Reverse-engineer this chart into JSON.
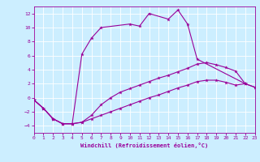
{
  "xlabel": "Windchill (Refroidissement éolien,°C)",
  "background_color": "#cceeff",
  "grid_color": "#ffffff",
  "line_color": "#990099",
  "xlim": [
    0,
    23
  ],
  "ylim": [
    -5,
    13
  ],
  "xticks": [
    0,
    1,
    2,
    3,
    4,
    5,
    6,
    7,
    8,
    9,
    10,
    11,
    12,
    13,
    14,
    15,
    16,
    17,
    18,
    19,
    20,
    21,
    22,
    23
  ],
  "yticks": [
    -4,
    -2,
    0,
    2,
    4,
    6,
    8,
    10,
    12
  ],
  "series1_x": [
    0,
    1,
    2,
    3,
    4,
    5,
    6,
    7,
    10,
    11,
    12,
    14,
    15,
    16,
    17,
    22
  ],
  "series1_y": [
    -0.3,
    -1.5,
    -3.0,
    -3.7,
    -3.7,
    6.2,
    8.5,
    10.0,
    10.5,
    10.2,
    12.0,
    11.2,
    12.5,
    10.5,
    5.5,
    2.0
  ],
  "series2_x": [
    0,
    1,
    2,
    3,
    4,
    5,
    6,
    7,
    8,
    9,
    10,
    11,
    12,
    13,
    14,
    15,
    16,
    17,
    18,
    19,
    20,
    21,
    22,
    23
  ],
  "series2_y": [
    -0.3,
    -1.5,
    -3.0,
    -3.7,
    -3.7,
    -3.5,
    -2.5,
    -1.0,
    0.0,
    0.8,
    1.3,
    1.8,
    2.3,
    2.8,
    3.2,
    3.7,
    4.2,
    4.8,
    5.0,
    4.7,
    4.3,
    3.8,
    2.0,
    1.5
  ],
  "series3_x": [
    0,
    1,
    2,
    3,
    4,
    5,
    6,
    7,
    8,
    9,
    10,
    11,
    12,
    13,
    14,
    15,
    16,
    17,
    18,
    19,
    20,
    21,
    22,
    23
  ],
  "series3_y": [
    -0.3,
    -1.5,
    -3.0,
    -3.7,
    -3.7,
    -3.5,
    -3.0,
    -2.5,
    -2.0,
    -1.5,
    -1.0,
    -0.5,
    0.0,
    0.4,
    0.9,
    1.4,
    1.8,
    2.3,
    2.5,
    2.5,
    2.2,
    1.8,
    2.0,
    1.5
  ]
}
